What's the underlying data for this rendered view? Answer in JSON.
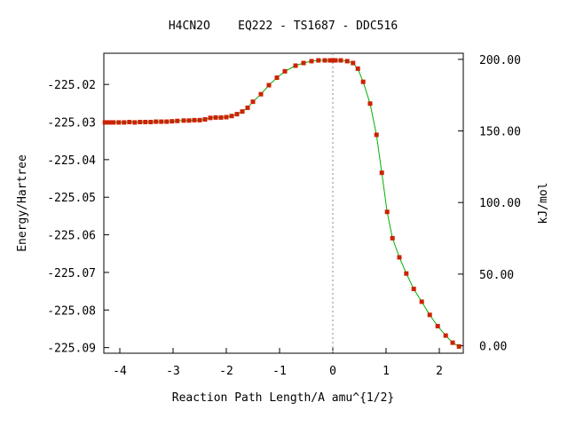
{
  "chart_data": {
    "type": "line",
    "title": "H4CN2O    EQ222 - TS1687 - DDC516",
    "xlabel": "Reaction Path Length/A amu^{1/2}",
    "ylabel": "Energy/Hartree",
    "y2label": "kJ/mol",
    "xlim": [
      -4.3,
      2.45
    ],
    "ylim": [
      -225.0915,
      -225.0117
    ],
    "y2_offset_hartree": -225.0895,
    "y2_hartree_to_kj": 2625.5,
    "x_ticks": [
      {
        "value": -4,
        "label": "-4"
      },
      {
        "value": -3,
        "label": "-3"
      },
      {
        "value": -2,
        "label": "-2"
      },
      {
        "value": -1,
        "label": "-1"
      },
      {
        "value": 0,
        "label": "0"
      },
      {
        "value": 1,
        "label": "1"
      },
      {
        "value": 2,
        "label": "2"
      }
    ],
    "y_ticks": [
      {
        "value": -225.02,
        "label": "-225.02"
      },
      {
        "value": -225.03,
        "label": "-225.03"
      },
      {
        "value": -225.04,
        "label": "-225.04"
      },
      {
        "value": -225.05,
        "label": "-225.05"
      },
      {
        "value": -225.06,
        "label": "-225.06"
      },
      {
        "value": -225.07,
        "label": "-225.07"
      },
      {
        "value": -225.08,
        "label": "-225.08"
      },
      {
        "value": -225.09,
        "label": "-225.09"
      }
    ],
    "y2_ticks": [
      {
        "value": 200,
        "label": "200.00"
      },
      {
        "value": 150,
        "label": "150.00"
      },
      {
        "value": 100,
        "label": "100.00"
      },
      {
        "value": 50,
        "label": "50.00"
      },
      {
        "value": 0,
        "label": "0.00"
      }
    ],
    "ts_marker_x": 0,
    "series": [
      {
        "line_color": "#00b000",
        "marker_color": "#cc2200",
        "x": [
          -4.28,
          -4.2,
          -4.12,
          -4.02,
          -3.92,
          -3.82,
          -3.72,
          -3.62,
          -3.52,
          -3.42,
          -3.32,
          -3.22,
          -3.12,
          -3.02,
          -2.92,
          -2.8,
          -2.7,
          -2.6,
          -2.5,
          -2.4,
          -2.3,
          -2.2,
          -2.1,
          -2.0,
          -1.9,
          -1.8,
          -1.7,
          -1.6,
          -1.5,
          -1.35,
          -1.2,
          -1.05,
          -0.9,
          -0.7,
          -0.55,
          -0.4,
          -0.27,
          -0.15,
          -0.05,
          0.0,
          0.05,
          0.15,
          0.27,
          0.38,
          0.47,
          0.57,
          0.7,
          0.82,
          0.92,
          1.02,
          1.12,
          1.25,
          1.38,
          1.52,
          1.67,
          1.82,
          1.97,
          2.12,
          2.25,
          2.37
        ],
        "y": [
          -225.0301,
          -225.0301,
          -225.0301,
          -225.0301,
          -225.0301,
          -225.03,
          -225.0301,
          -225.03,
          -225.03,
          -225.03,
          -225.0299,
          -225.0299,
          -225.0299,
          -225.0298,
          -225.0297,
          -225.0296,
          -225.0296,
          -225.0295,
          -225.0295,
          -225.0293,
          -225.0289,
          -225.0288,
          -225.0288,
          -225.0287,
          -225.0284,
          -225.0279,
          -225.0272,
          -225.0262,
          -225.0246,
          -225.0226,
          -225.0202,
          -225.0182,
          -225.0165,
          -225.015,
          -225.0143,
          -225.0138,
          -225.0136,
          -225.0136,
          -225.0136,
          -225.0136,
          -225.0136,
          -225.0136,
          -225.0138,
          -225.0143,
          -225.0158,
          -225.0193,
          -225.0251,
          -225.0334,
          -225.0435,
          -225.0539,
          -225.0609,
          -225.066,
          -225.0703,
          -225.0744,
          -225.0778,
          -225.0813,
          -225.0843,
          -225.0868,
          -225.0887,
          -225.0897
        ]
      }
    ]
  }
}
